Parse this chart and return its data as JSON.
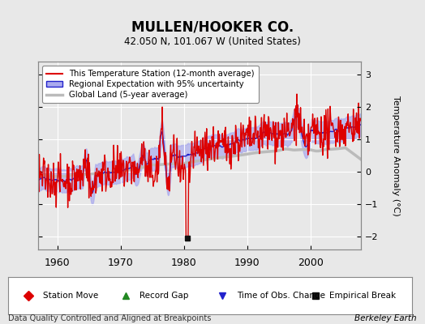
{
  "title": "MULLEN/HOOKER CO.",
  "subtitle": "42.050 N, 101.067 W (United States)",
  "ylabel": "Temperature Anomaly (°C)",
  "xlabel_footer": "Data Quality Controlled and Aligned at Breakpoints",
  "source_label": "Berkeley Earth",
  "xlim": [
    1957,
    2008
  ],
  "ylim": [
    -2.4,
    3.4
  ],
  "yticks": [
    -2,
    -1,
    0,
    1,
    2,
    3
  ],
  "xticks": [
    1960,
    1970,
    1980,
    1990,
    2000
  ],
  "bg_color": "#e8e8e8",
  "plot_bg_color": "#e8e8e8",
  "grid_color": "#ffffff",
  "station_line_color": "#dd0000",
  "regional_line_color": "#2222cc",
  "regional_fill_color": "#aaaaee",
  "global_line_color": "#bbbbbb",
  "empirical_break_year": 1980.5,
  "empirical_break_value": -2.05,
  "legend_items": [
    {
      "label": "This Temperature Station (12-month average)",
      "color": "#dd0000",
      "lw": 1.5
    },
    {
      "label": "Regional Expectation with 95% uncertainty",
      "color": "#2222cc",
      "lw": 1.5
    },
    {
      "label": "Global Land (5-year average)",
      "color": "#bbbbbb",
      "lw": 2.0
    }
  ],
  "marker_legend": [
    {
      "label": "Station Move",
      "marker": "D",
      "color": "#dd0000"
    },
    {
      "label": "Record Gap",
      "marker": "^",
      "color": "#228822"
    },
    {
      "label": "Time of Obs. Change",
      "marker": "v",
      "color": "#2222cc"
    },
    {
      "label": "Empirical Break",
      "marker": "s",
      "color": "#222222"
    }
  ]
}
